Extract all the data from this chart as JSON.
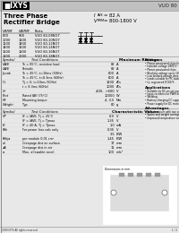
{
  "bg_color": "#d8d8d8",
  "header_bg": "#c0c0c0",
  "body_bg": "#e8e8e8",
  "white": "#ffffff",
  "black": "#000000",
  "part_number": "VUO 80",
  "subtitle1": "Three Phase",
  "subtitle2": "Rectifier Bridge",
  "spec1_label": "IAVE",
  "spec1_val": "= 82 A",
  "spec2_label": "VRRM",
  "spec2_val": "= 800-1800 V",
  "table1_col0": "VRRM",
  "table1_col1": "VWRM",
  "table1_col2": "Parts",
  "table1_unit0": "V",
  "table1_unit1": "V",
  "table1_rows": [
    [
      "800",
      "900",
      "VUO 80-08NO7"
    ],
    [
      "1000",
      "1200",
      "VUO 80-10NO7"
    ],
    [
      "1200",
      "1400",
      "VUO 80-12NO7"
    ],
    [
      "1400",
      "1600",
      "VUO 80-14NO7"
    ],
    [
      "1600",
      "1800",
      "VUO 80-16NO7"
    ],
    [
      "1800",
      "2000",
      "VUO 80-18NO7"
    ]
  ],
  "sec1_title": "Maximum Ratings",
  "sec2_title": "Characteristic Values",
  "col_symbol": "Symbol",
  "col_testcond": "Test Conditions",
  "ratings": [
    [
      "IAVE",
      "Tc = 85°C, resistive load",
      "",
      "82",
      "A"
    ],
    [
      "IAVE",
      "Periodic",
      "",
      "82",
      "A"
    ],
    [
      "Ipeak",
      "Tc = 45°C, t=10ms (50Hz) sine",
      "t = 10ms (50/60Hz) sine",
      "600",
      "A"
    ],
    [
      "",
      "",
      "t = 8.3ms (60Hz) sine",
      "600",
      "A"
    ],
    [
      "I²t",
      "Tc = 0",
      "t = 10ms (50/60Hz) sine",
      "1200",
      "A²s"
    ],
    [
      "",
      "",
      "t = 8.3ms (60Hz)",
      "1000",
      "A²s"
    ],
    [
      "Vr",
      "",
      "",
      "-400...+600",
      "V"
    ],
    [
      "Ptot",
      "Rated IAV (75°C), 3...7 s",
      "",
      "10000",
      "W"
    ],
    [
      "Mt",
      "Mounting torque",
      "(70...92) Nm",
      "4...3.5",
      "Nm"
    ],
    [
      "Weight",
      "Typ",
      "",
      "80",
      "g"
    ]
  ],
  "char_vals": [
    [
      "VF",
      "IF = IAVE",
      "Tj = 25°C",
      "0.9",
      "V"
    ],
    [
      "",
      "",
      "Tj = Tjmax",
      "1.35",
      "V"
    ],
    [
      "IR",
      "IF = 40 A",
      "Tj = Tjmax",
      "1.0",
      "mA"
    ],
    [
      "Rth",
      "For power loss calc only",
      "",
      "0.35",
      "V"
    ],
    [
      "",
      "",
      "",
      "3.5",
      "K/W"
    ],
    [
      "Rthja",
      "per module 0.01 cm²",
      "",
      "1.45",
      "K/W"
    ],
    [
      "dc",
      "Creepage dist on surface",
      "",
      "17",
      "mm"
    ],
    [
      "dA",
      "Creepage dist in air",
      "",
      "11",
      "mm"
    ],
    [
      "a",
      "Max. allowable accel",
      "",
      "100",
      "m/s²"
    ]
  ],
  "features_title": "Features",
  "features": [
    "Planar passivated chips for long term stability",
    "Isolation voltage 4800 V~",
    "Planar passivated chips",
    "Blocking voltage up to 1800 V",
    "Low forward-voltage drop",
    "Leads suitable for PC board soldering",
    "UL registered E72873"
  ],
  "applications_title": "Applications",
  "applications": [
    "Suitable for DC-circuit equipment",
    "Input rectifiers for PWM inverter",
    "Welding",
    "Battery charging DC supplies",
    "Power supply for DC motors"
  ],
  "advantages_title": "Advantages",
  "advantages": [
    "Easy to mount with two screws",
    "Space and weight savings",
    "Improved temperature and power control"
  ],
  "footer_left": "2000 IXYS All rights reserved",
  "footer_right": "1 / 2"
}
